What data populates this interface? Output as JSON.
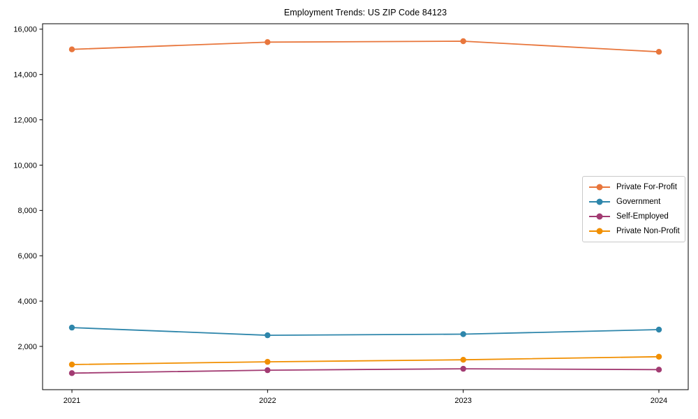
{
  "figure": {
    "title": "Employment Trends: US ZIP Code 84123"
  },
  "chart_data": {
    "type": "line",
    "title": "Employment Trends: US ZIP Code 84123",
    "xlabel": "",
    "ylabel": "",
    "x": [
      2021,
      2022,
      2023,
      2024
    ],
    "x_tick_labels": [
      "2021",
      "2022",
      "2023",
      "2024"
    ],
    "series": [
      {
        "name": "Private For-Profit",
        "color": "#E8763C",
        "values": [
          15110,
          15430,
          15470,
          15000
        ]
      },
      {
        "name": "Government",
        "color": "#2E86AB",
        "values": [
          2830,
          2490,
          2540,
          2740
        ]
      },
      {
        "name": "Self-Employed",
        "color": "#A23B72",
        "values": [
          820,
          950,
          1010,
          975
        ]
      },
      {
        "name": "Private Non-Profit",
        "color": "#F18F01",
        "values": [
          1200,
          1320,
          1410,
          1545
        ]
      }
    ],
    "xlim": [
      2020.85,
      2024.15
    ],
    "ylim": [
      90,
      16240
    ],
    "yticks": [
      2000,
      4000,
      6000,
      8000,
      10000,
      12000,
      14000,
      16000
    ],
    "ytick_labels": [
      "2,000",
      "4,000",
      "6,000",
      "8,000",
      "10,000",
      "12,000",
      "14,000",
      "16,000"
    ],
    "grid": false,
    "legend_position": "center right",
    "axis_color": "#000000",
    "background_color": "#ffffff"
  }
}
